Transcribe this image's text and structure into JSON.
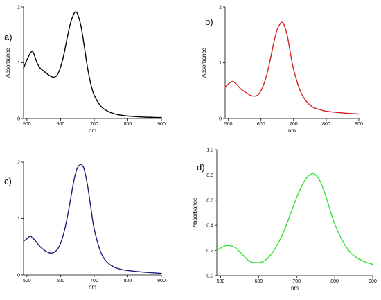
{
  "chart_data": [
    {
      "type": "line",
      "panel_label": "a)",
      "xlabel": "nm",
      "ylabel": "Absorbance",
      "xlim": [
        490,
        900
      ],
      "ylim": [
        0,
        2
      ],
      "xticks": [
        500,
        600,
        700,
        800,
        900
      ],
      "yticks": [
        0,
        1,
        2
      ],
      "ytick_labels": [
        "0",
        "1",
        "2"
      ],
      "color": "#000000",
      "series": [
        {
          "x": [
            490,
            500,
            510,
            515,
            520,
            530,
            540,
            550,
            560,
            570,
            580,
            590,
            600,
            610,
            620,
            630,
            640,
            645,
            650,
            660,
            670,
            680,
            690,
            700,
            720,
            740,
            760,
            780,
            800,
            820,
            850,
            880,
            900
          ],
          "values": [
            0.9,
            1.05,
            1.17,
            1.2,
            1.17,
            1.0,
            0.9,
            0.85,
            0.8,
            0.76,
            0.74,
            0.78,
            0.92,
            1.15,
            1.45,
            1.72,
            1.88,
            1.91,
            1.88,
            1.68,
            1.32,
            0.92,
            0.62,
            0.42,
            0.22,
            0.13,
            0.085,
            0.06,
            0.045,
            0.035,
            0.025,
            0.02,
            0.018
          ]
        }
      ]
    },
    {
      "type": "line",
      "panel_label": "b)",
      "xlabel": "nm",
      "ylabel": "Absorbance",
      "xlim": [
        490,
        900
      ],
      "ylim": [
        0,
        2
      ],
      "xticks": [
        500,
        600,
        700,
        800,
        900
      ],
      "yticks": [
        0,
        1,
        2
      ],
      "ytick_labels": [
        "0",
        "1",
        "2"
      ],
      "color": "#d62020",
      "series": [
        {
          "x": [
            490,
            500,
            510,
            515,
            520,
            530,
            540,
            550,
            560,
            570,
            580,
            590,
            600,
            610,
            620,
            630,
            640,
            650,
            660,
            665,
            670,
            680,
            690,
            700,
            720,
            740,
            760,
            780,
            800,
            850,
            900
          ],
          "values": [
            0.56,
            0.62,
            0.66,
            0.66,
            0.64,
            0.58,
            0.52,
            0.48,
            0.44,
            0.41,
            0.4,
            0.42,
            0.5,
            0.64,
            0.84,
            1.1,
            1.38,
            1.6,
            1.71,
            1.72,
            1.69,
            1.5,
            1.18,
            0.88,
            0.5,
            0.3,
            0.2,
            0.16,
            0.13,
            0.1,
            0.08
          ]
        }
      ]
    },
    {
      "type": "line",
      "panel_label": "c)",
      "xlabel": "nm",
      "ylabel": "",
      "xlim": [
        490,
        900
      ],
      "ylim": [
        0,
        2
      ],
      "xticks": [
        500,
        600,
        700,
        800,
        900
      ],
      "yticks": [
        0,
        1,
        2
      ],
      "ytick_labels": [
        "0",
        "1",
        "2"
      ],
      "color": "#1c1c7a",
      "series": [
        {
          "x": [
            490,
            500,
            505,
            510,
            520,
            530,
            540,
            550,
            560,
            570,
            580,
            590,
            600,
            610,
            620,
            630,
            640,
            650,
            660,
            665,
            670,
            680,
            690,
            700,
            720,
            740,
            760,
            780,
            800,
            850,
            900
          ],
          "values": [
            0.6,
            0.64,
            0.67,
            0.69,
            0.64,
            0.57,
            0.5,
            0.45,
            0.41,
            0.39,
            0.4,
            0.45,
            0.56,
            0.75,
            1.02,
            1.35,
            1.68,
            1.9,
            1.96,
            1.94,
            1.88,
            1.6,
            1.2,
            0.82,
            0.4,
            0.22,
            0.14,
            0.1,
            0.08,
            0.05,
            0.03
          ]
        }
      ]
    },
    {
      "type": "line",
      "panel_label": "d)",
      "xlabel": "nm",
      "ylabel": "Absorbance",
      "xlim": [
        490,
        900
      ],
      "ylim": [
        0,
        1.0
      ],
      "xticks": [
        500,
        600,
        700,
        800,
        900
      ],
      "yticks": [
        0,
        0.2,
        0.4,
        0.6,
        0.8,
        1.0
      ],
      "ytick_labels": [
        "0.0",
        "0.2",
        "0.4",
        "0.6",
        "0.8",
        "1.0"
      ],
      "color": "#33e033",
      "series": [
        {
          "x": [
            490,
            500,
            510,
            520,
            530,
            540,
            550,
            560,
            570,
            580,
            590,
            600,
            610,
            620,
            630,
            640,
            650,
            660,
            670,
            680,
            690,
            700,
            710,
            720,
            730,
            740,
            745,
            750,
            760,
            770,
            780,
            790,
            800,
            820,
            840,
            860,
            880,
            900
          ],
          "values": [
            0.2,
            0.22,
            0.235,
            0.24,
            0.235,
            0.22,
            0.19,
            0.16,
            0.13,
            0.11,
            0.105,
            0.105,
            0.11,
            0.13,
            0.16,
            0.2,
            0.25,
            0.31,
            0.38,
            0.46,
            0.54,
            0.62,
            0.69,
            0.75,
            0.79,
            0.81,
            0.81,
            0.8,
            0.76,
            0.69,
            0.6,
            0.5,
            0.41,
            0.28,
            0.19,
            0.14,
            0.11,
            0.09
          ]
        }
      ]
    }
  ]
}
